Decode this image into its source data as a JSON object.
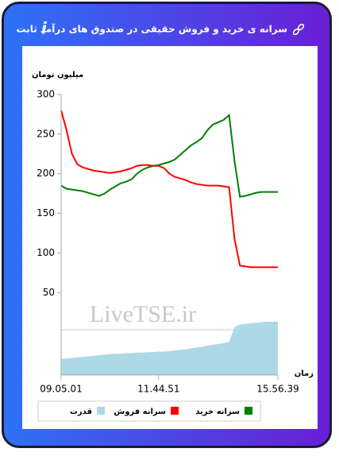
{
  "chart_data": {
    "type": "line",
    "title": "سرانه ی خرید و فروش حقیقی در صندوق های درآمد ثابت",
    "ylabel": "میلیون تومان",
    "xlabel": "زمان",
    "watermark": "LiveTSE.ir",
    "categories": [
      "09.05.01",
      null,
      null,
      null,
      null,
      null,
      null,
      null,
      null,
      null,
      null,
      null,
      null,
      null,
      null,
      null,
      null,
      null,
      "11.44.51",
      null,
      null,
      null,
      null,
      null,
      null,
      null,
      null,
      null,
      null,
      null,
      null,
      null,
      null,
      null,
      null,
      null,
      null,
      null,
      null,
      null,
      "15.56.39"
    ],
    "series": [
      {
        "name": "سرانه خرید",
        "color": "#008000",
        "values": [
          185,
          181,
          180,
          179,
          178,
          176,
          174,
          172,
          175,
          180,
          184,
          188,
          190,
          193,
          200,
          205,
          208,
          210,
          211,
          213,
          215,
          218,
          224,
          230,
          236,
          240,
          245,
          255,
          262,
          265,
          268,
          274,
          216,
          171,
          172,
          174,
          176,
          177,
          177,
          177,
          177
        ]
      },
      {
        "name": "سرانه فروش",
        "color": "#ff0000",
        "values": [
          280,
          255,
          225,
          212,
          208,
          206,
          204,
          203,
          202,
          201,
          202,
          203,
          205,
          207,
          210,
          211,
          211,
          210,
          210,
          207,
          200,
          196,
          194,
          192,
          189,
          187,
          186,
          185,
          185,
          185,
          184,
          183,
          118,
          84,
          83,
          82,
          82,
          82,
          82,
          82,
          82
        ]
      },
      {
        "name": "قدرت",
        "color": "#add8e6",
        "axis": "y2",
        "values": [
          30,
          31,
          32,
          33,
          34,
          35,
          36,
          37,
          38,
          39,
          40,
          40,
          41,
          41,
          42,
          42,
          43,
          43,
          44,
          44,
          45,
          46,
          47,
          48,
          50,
          52,
          53,
          55,
          57,
          58,
          60,
          62,
          90,
          95,
          96,
          97,
          98,
          99,
          100,
          100,
          100
        ]
      }
    ],
    "ylim": [
      -54,
      300
    ],
    "yticks": [
      50,
      100,
      150,
      200,
      250,
      300
    ],
    "y2lim": [
      0,
      100
    ]
  }
}
